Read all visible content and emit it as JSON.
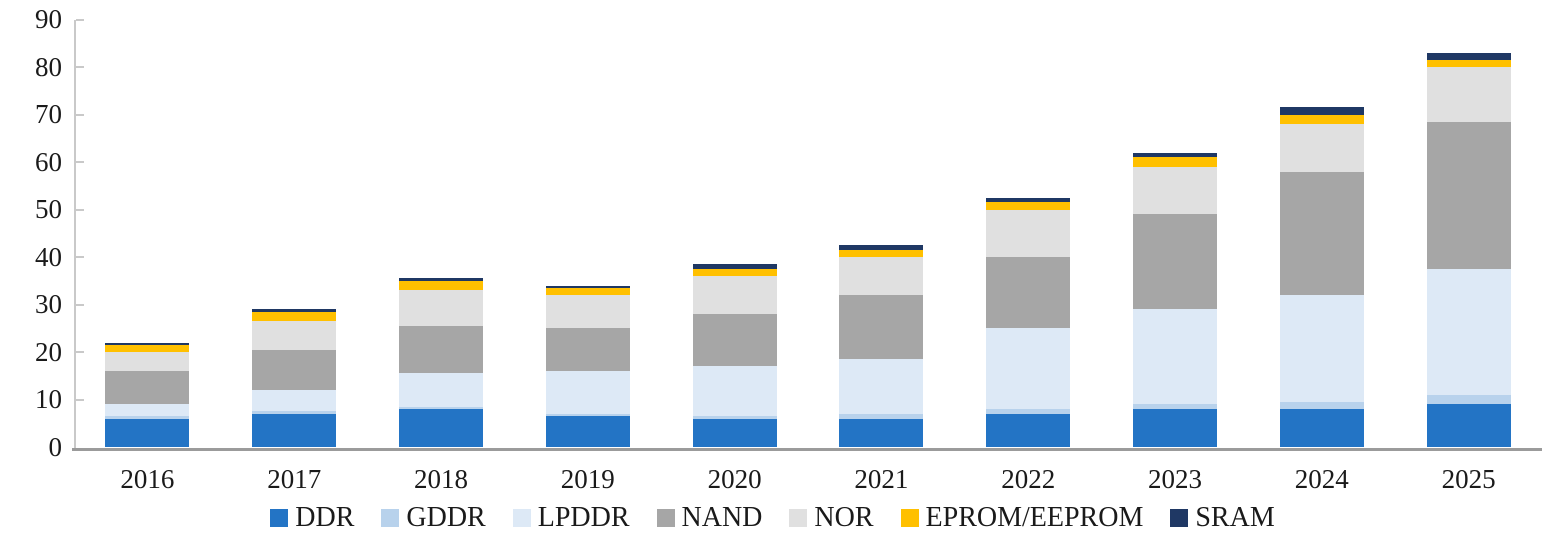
{
  "chart_data": {
    "type": "bar",
    "stacked": true,
    "title": "",
    "xlabel": "",
    "ylabel": "",
    "categories": [
      "2016",
      "2017",
      "2018",
      "2019",
      "2020",
      "2021",
      "2022",
      "2023",
      "2024",
      "2025"
    ],
    "series": [
      {
        "name": "DDR",
        "color": "#2374C5",
        "values": [
          6,
          7,
          8,
          6.5,
          6,
          6,
          7,
          8,
          8,
          9
        ]
      },
      {
        "name": "GDDR",
        "color": "#B8D2EC",
        "values": [
          0.5,
          0.5,
          0.5,
          0.5,
          0.5,
          1,
          1,
          1,
          1.5,
          2
        ]
      },
      {
        "name": "LPDDR",
        "color": "#DDE9F6",
        "values": [
          2.5,
          4.5,
          7,
          9,
          10.5,
          11.5,
          17,
          20,
          22.5,
          26.5
        ]
      },
      {
        "name": "NAND",
        "color": "#A6A6A6",
        "values": [
          7,
          8.5,
          10,
          9,
          11,
          13.5,
          15,
          20,
          26,
          31
        ]
      },
      {
        "name": "NOR",
        "color": "#E0E0E0",
        "values": [
          4,
          6,
          7.5,
          7,
          8,
          8,
          10,
          10,
          10,
          11.5
        ]
      },
      {
        "name": "EPROM/EEPROM",
        "color": "#FFC000",
        "values": [
          1.5,
          2,
          2,
          1.5,
          1.5,
          1.5,
          1.5,
          2,
          2,
          1.5
        ]
      },
      {
        "name": "SRAM",
        "color": "#1F3864",
        "values": [
          0.5,
          0.5,
          0.5,
          0.5,
          1,
          1,
          1,
          1,
          1.5,
          1.5
        ]
      }
    ],
    "ylim": [
      0,
      90
    ],
    "ytick_step": 10,
    "ytick_labels": [
      "0",
      "10",
      "20",
      "30",
      "40",
      "50",
      "60",
      "70",
      "80",
      "90"
    ],
    "grid": false,
    "legend_position": "bottom",
    "axis_text_color": "#1a1a1a",
    "y_axis_color": "#c9c9c9",
    "x_axis_color": "#9b9b9b"
  }
}
